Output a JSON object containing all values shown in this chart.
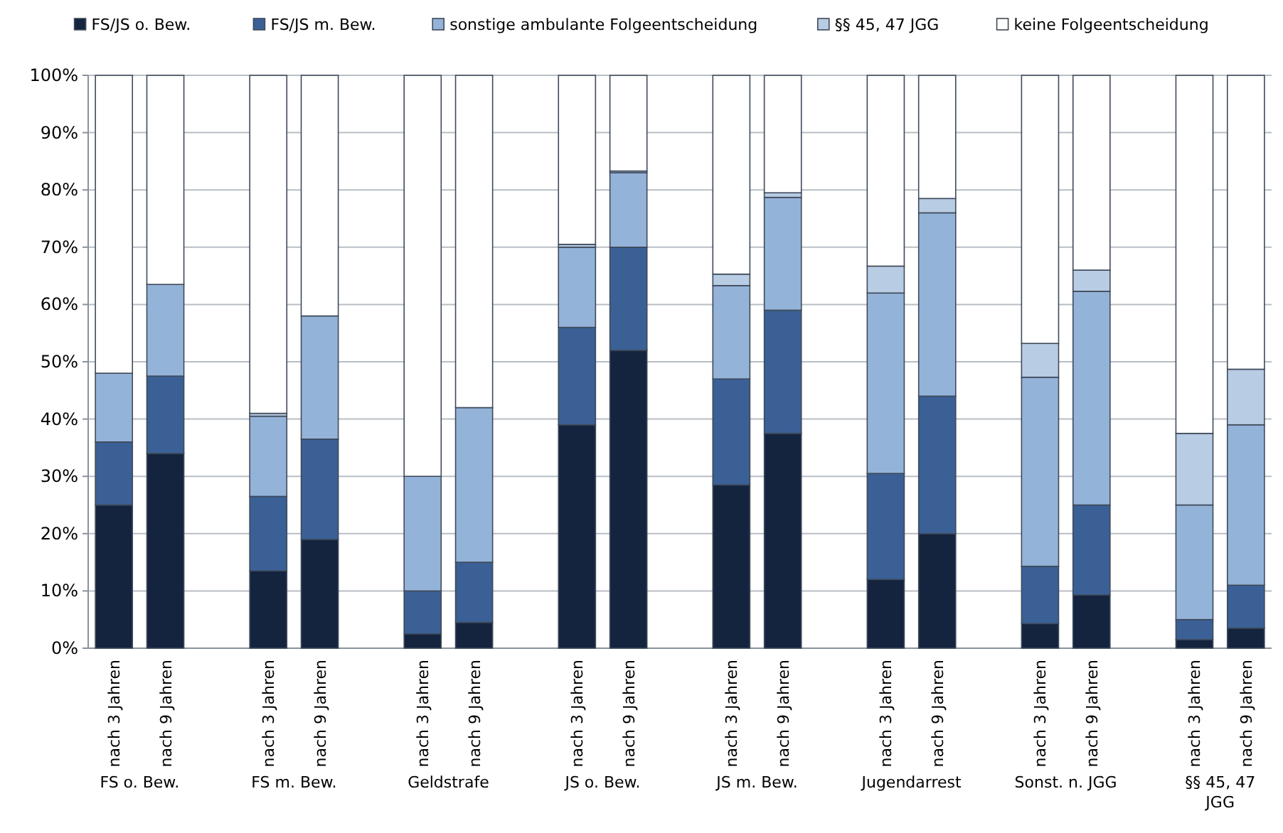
{
  "chart_data": {
    "type": "bar",
    "stacked": true,
    "categories": [
      "nach 3 Jahren",
      "nach 9 Jahren",
      "nach 3 Jahren",
      "nach 9 Jahren",
      "nach 3 Jahren",
      "nach 9 Jahren",
      "nach 3 Jahren",
      "nach 9 Jahren",
      "nach 3 Jahren",
      "nach 9 Jahren",
      "nach 3 Jahren",
      "nach 9 Jahren",
      "nach 3 Jahren",
      "nach 9 Jahren",
      "nach 3 Jahren",
      "nach 9 Jahren"
    ],
    "series": [
      {
        "name": "FS/JS o. Bew.",
        "color": "#14243f",
        "values": [
          25,
          34,
          13.5,
          19,
          2.5,
          4.5,
          39,
          52,
          28.5,
          37.5,
          12,
          20,
          4.3,
          9.3,
          1.5,
          3.5
        ]
      },
      {
        "name": "FS/JS m. Bew.",
        "color": "#3a6096",
        "values": [
          11,
          13.5,
          13,
          17.5,
          7.5,
          10.5,
          17,
          18,
          18.5,
          21.5,
          18.5,
          24,
          10,
          15.7,
          3.5,
          7.5
        ]
      },
      {
        "name": "sonstige ambulante Folgeentscheidung",
        "color": "#94b3d9",
        "values": [
          12,
          16,
          14,
          21.5,
          20,
          27,
          14,
          13,
          16.3,
          19.7,
          31.5,
          32,
          33,
          37.3,
          20,
          28
        ]
      },
      {
        "name": "§§ 45, 47 JGG",
        "color": "#b8cce4",
        "values": [
          0,
          0,
          0.5,
          0,
          0,
          0,
          0.5,
          0.3,
          2,
          0.8,
          4.7,
          2.5,
          5.9,
          3.7,
          12.5,
          9.7
        ]
      },
      {
        "name": "keine Folgeentscheidung",
        "color": "#ffffff",
        "values": [
          52,
          36.5,
          59,
          42,
          70,
          58,
          29.5,
          16.7,
          34.7,
          20.5,
          33.3,
          21.5,
          46.8,
          34,
          62.5,
          51.3
        ]
      }
    ],
    "ylim": [
      0,
      100
    ],
    "yticks": [
      {
        "value": 0,
        "label": "0%"
      },
      {
        "value": 10,
        "label": "10%"
      },
      {
        "value": 20,
        "label": "20%"
      },
      {
        "value": 30,
        "label": "30%"
      },
      {
        "value": 40,
        "label": "40%"
      },
      {
        "value": 50,
        "label": "50%"
      },
      {
        "value": 60,
        "label": "60%"
      },
      {
        "value": 70,
        "label": "70%"
      },
      {
        "value": 80,
        "label": "80%"
      },
      {
        "value": 90,
        "label": "90%"
      },
      {
        "value": 100,
        "label": "100%"
      }
    ],
    "grid": "y",
    "legend": "top",
    "annotations": [
      "FS o. Bew.",
      "FS m. Bew.",
      "Geldstrafe",
      "JS o. Bew.",
      "JS m. Bew.",
      "Jugendarrest",
      "Sonst. n. JGG",
      "§§ 45, 47 JGG"
    ]
  }
}
